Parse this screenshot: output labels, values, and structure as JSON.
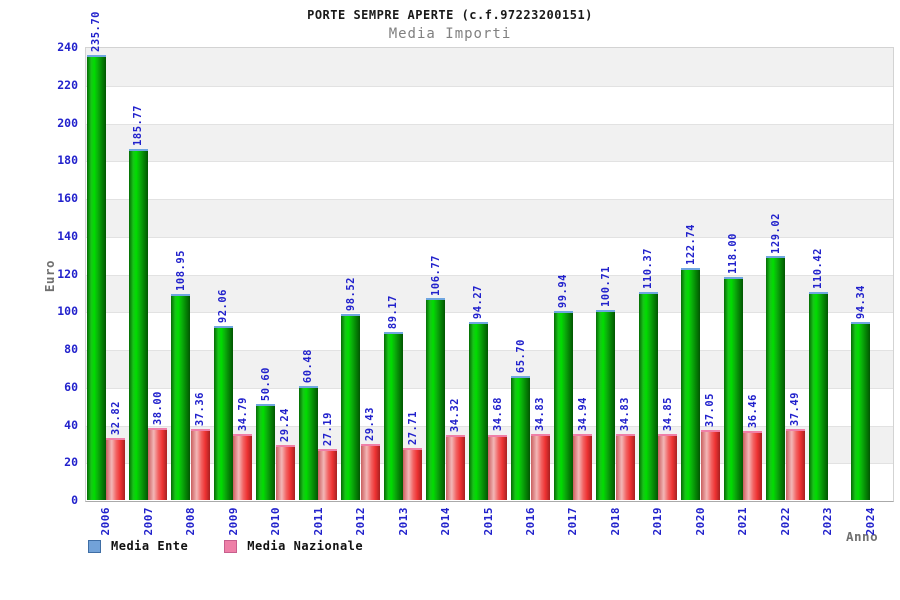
{
  "title": "PORTE SEMPRE APERTE (c.f.97223200151)",
  "subtitle": "Media Importi",
  "chart_data": {
    "type": "bar",
    "title": "PORTE SEMPRE APERTE (c.f.97223200151)",
    "subtitle": "Media Importi",
    "xlabel": "Anno",
    "ylabel": "Euro",
    "ylim": [
      0,
      240
    ],
    "ytick_step": 20,
    "grid": "horizontal-bands",
    "legend_position": "bottom-left",
    "categories": [
      "2006",
      "2007",
      "2008",
      "2009",
      "2010",
      "2011",
      "2012",
      "2013",
      "2014",
      "2015",
      "2016",
      "2017",
      "2018",
      "2019",
      "2020",
      "2021",
      "2022",
      "2023",
      "2024"
    ],
    "series": [
      {
        "name": "Media Ente",
        "legend_color": "#72a2d8",
        "legend_border": "#3f6ea5",
        "bar_style": "green",
        "values": [
          235.7,
          185.77,
          108.95,
          92.06,
          50.6,
          60.48,
          98.52,
          89.17,
          106.77,
          94.27,
          65.7,
          99.94,
          100.71,
          110.37,
          122.74,
          118.0,
          129.02,
          110.42,
          94.34
        ]
      },
      {
        "name": "Media Nazionale",
        "legend_color": "#ee7fa7",
        "legend_border": "#c75f8d",
        "bar_style": "red",
        "values": [
          32.82,
          38.0,
          37.36,
          34.79,
          29.24,
          27.19,
          29.43,
          27.71,
          34.32,
          34.68,
          34.83,
          34.94,
          34.83,
          34.85,
          37.05,
          36.46,
          37.49,
          null,
          null
        ]
      }
    ],
    "value_label_color": "#2222cc",
    "axis_label_color": "#2222cc",
    "band_color_odd": "#f1f1f1",
    "band_color_even": "#ffffff"
  }
}
